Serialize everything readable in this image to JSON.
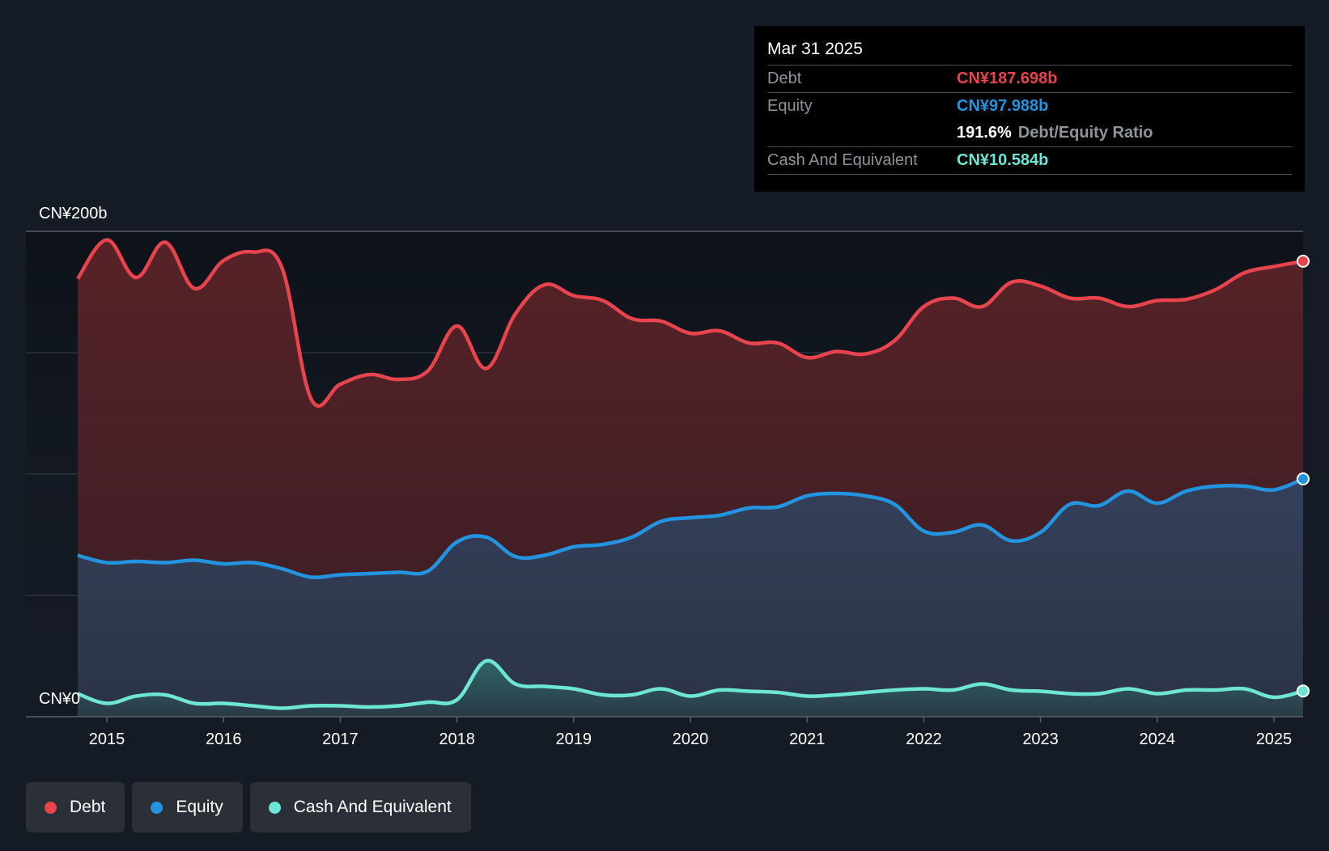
{
  "tooltip": {
    "date": "Mar 31 2025",
    "debt_label": "Debt",
    "debt_value": "CN¥187.698b",
    "equity_label": "Equity",
    "equity_value": "CN¥97.988b",
    "ratio_value": "191.6%",
    "ratio_label": "Debt/Equity Ratio",
    "cash_label": "Cash And Equivalent",
    "cash_value": "CN¥10.584b"
  },
  "legend": {
    "debt": "Debt",
    "equity": "Equity",
    "cash": "Cash And Equivalent"
  },
  "colors": {
    "debt": "#e8444d",
    "equity": "#2394df",
    "cash": "#6ee6d4",
    "background": "#151b24"
  },
  "chart_data": {
    "type": "area",
    "title": "",
    "xlabel": "",
    "ylabel": "",
    "ylim": [
      0,
      200
    ],
    "xlim": [
      2014.7,
      2025.25
    ],
    "y_tick_labels": [
      {
        "value": 200,
        "label": "CN¥200b"
      },
      {
        "value": 0,
        "label": "CN¥0"
      }
    ],
    "gridlines": [
      50,
      100,
      150
    ],
    "x_ticks": [
      2015,
      2016,
      2017,
      2018,
      2019,
      2020,
      2021,
      2022,
      2023,
      2024,
      2025
    ],
    "series": [
      {
        "name": "Debt",
        "color": "#e8444d",
        "points": [
          [
            2014.75,
            180.5
          ],
          [
            2015.0,
            196.5
          ],
          [
            2015.25,
            181.0
          ],
          [
            2015.5,
            195.5
          ],
          [
            2015.75,
            176.5
          ],
          [
            2016.0,
            188.0
          ],
          [
            2016.25,
            191.5
          ],
          [
            2016.5,
            185.0
          ],
          [
            2016.75,
            131.0
          ],
          [
            2017.0,
            137.0
          ],
          [
            2017.25,
            141.0
          ],
          [
            2017.5,
            139.0
          ],
          [
            2017.75,
            142.5
          ],
          [
            2018.0,
            161.0
          ],
          [
            2018.25,
            143.5
          ],
          [
            2018.5,
            166.0
          ],
          [
            2018.75,
            178.0
          ],
          [
            2019.0,
            173.5
          ],
          [
            2019.25,
            171.5
          ],
          [
            2019.5,
            164.0
          ],
          [
            2019.75,
            163.0
          ],
          [
            2020.0,
            158.0
          ],
          [
            2020.25,
            159.0
          ],
          [
            2020.5,
            154.0
          ],
          [
            2020.75,
            154.0
          ],
          [
            2021.0,
            148.0
          ],
          [
            2021.25,
            150.5
          ],
          [
            2021.5,
            149.5
          ],
          [
            2021.75,
            155.0
          ],
          [
            2022.0,
            169.0
          ],
          [
            2022.25,
            172.5
          ],
          [
            2022.5,
            169.0
          ],
          [
            2022.75,
            179.0
          ],
          [
            2023.0,
            177.5
          ],
          [
            2023.25,
            172.5
          ],
          [
            2023.5,
            172.5
          ],
          [
            2023.75,
            169.0
          ],
          [
            2024.0,
            171.5
          ],
          [
            2024.25,
            172.0
          ],
          [
            2024.5,
            176.0
          ],
          [
            2024.75,
            183.0
          ],
          [
            2025.0,
            185.5
          ],
          [
            2025.25,
            187.7
          ]
        ]
      },
      {
        "name": "Equity",
        "color": "#2394df",
        "points": [
          [
            2014.75,
            66.5
          ],
          [
            2015.0,
            63.5
          ],
          [
            2015.25,
            64.0
          ],
          [
            2015.5,
            63.5
          ],
          [
            2015.75,
            64.5
          ],
          [
            2016.0,
            63.0
          ],
          [
            2016.25,
            63.5
          ],
          [
            2016.5,
            61.0
          ],
          [
            2016.75,
            57.5
          ],
          [
            2017.0,
            58.5
          ],
          [
            2017.25,
            59.0
          ],
          [
            2017.5,
            59.5
          ],
          [
            2017.75,
            60.0
          ],
          [
            2018.0,
            72.0
          ],
          [
            2018.25,
            74.0
          ],
          [
            2018.5,
            66.0
          ],
          [
            2018.75,
            66.5
          ],
          [
            2019.0,
            70.0
          ],
          [
            2019.25,
            71.0
          ],
          [
            2019.5,
            74.0
          ],
          [
            2019.75,
            80.5
          ],
          [
            2020.0,
            82.0
          ],
          [
            2020.25,
            83.0
          ],
          [
            2020.5,
            86.0
          ],
          [
            2020.75,
            86.5
          ],
          [
            2021.0,
            91.0
          ],
          [
            2021.25,
            92.0
          ],
          [
            2021.5,
            91.0
          ],
          [
            2021.75,
            87.5
          ],
          [
            2022.0,
            76.5
          ],
          [
            2022.25,
            76.0
          ],
          [
            2022.5,
            79.0
          ],
          [
            2022.75,
            72.5
          ],
          [
            2023.0,
            76.0
          ],
          [
            2023.25,
            87.5
          ],
          [
            2023.5,
            87.0
          ],
          [
            2023.75,
            93.0
          ],
          [
            2024.0,
            88.0
          ],
          [
            2024.25,
            93.0
          ],
          [
            2024.5,
            95.0
          ],
          [
            2024.75,
            95.0
          ],
          [
            2025.0,
            93.5
          ],
          [
            2025.25,
            98.0
          ]
        ]
      },
      {
        "name": "Cash And Equivalent",
        "color": "#6ee6d4",
        "points": [
          [
            2014.75,
            9.5
          ],
          [
            2015.0,
            5.5
          ],
          [
            2015.25,
            8.5
          ],
          [
            2015.5,
            9.0
          ],
          [
            2015.75,
            5.5
          ],
          [
            2016.0,
            5.5
          ],
          [
            2016.25,
            4.5
          ],
          [
            2016.5,
            3.5
          ],
          [
            2016.75,
            4.5
          ],
          [
            2017.0,
            4.5
          ],
          [
            2017.25,
            4.0
          ],
          [
            2017.5,
            4.5
          ],
          [
            2017.75,
            6.0
          ],
          [
            2018.0,
            7.0
          ],
          [
            2018.25,
            23.0
          ],
          [
            2018.5,
            13.5
          ],
          [
            2018.75,
            12.5
          ],
          [
            2019.0,
            11.5
          ],
          [
            2019.25,
            9.0
          ],
          [
            2019.5,
            9.0
          ],
          [
            2019.75,
            11.5
          ],
          [
            2020.0,
            8.5
          ],
          [
            2020.25,
            11.0
          ],
          [
            2020.5,
            10.5
          ],
          [
            2020.75,
            10.0
          ],
          [
            2021.0,
            8.5
          ],
          [
            2021.25,
            9.0
          ],
          [
            2021.5,
            10.0
          ],
          [
            2021.75,
            11.0
          ],
          [
            2022.0,
            11.5
          ],
          [
            2022.25,
            11.0
          ],
          [
            2022.5,
            13.5
          ],
          [
            2022.75,
            11.0
          ],
          [
            2023.0,
            10.5
          ],
          [
            2023.25,
            9.5
          ],
          [
            2023.5,
            9.5
          ],
          [
            2023.75,
            11.5
          ],
          [
            2024.0,
            9.5
          ],
          [
            2024.25,
            11.0
          ],
          [
            2024.5,
            11.0
          ],
          [
            2024.75,
            11.5
          ],
          [
            2025.0,
            8.0
          ],
          [
            2025.25,
            10.6
          ]
        ]
      }
    ]
  }
}
